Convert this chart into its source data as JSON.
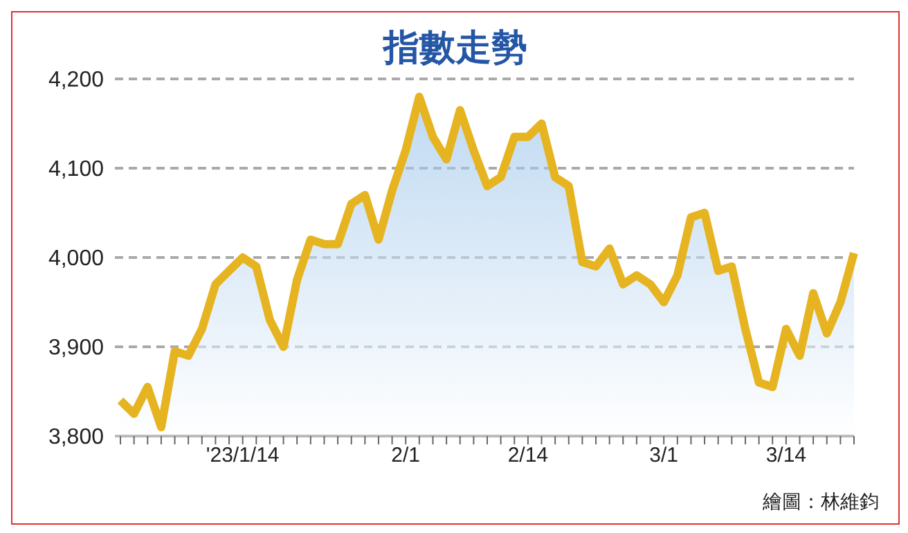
{
  "chart_data": {
    "type": "area",
    "title": "指數走勢",
    "categories": [
      null,
      null,
      null,
      null,
      null,
      null,
      null,
      null,
      null,
      "'23/1/14",
      null,
      null,
      null,
      null,
      null,
      null,
      null,
      null,
      null,
      null,
      null,
      "2/1",
      null,
      null,
      null,
      null,
      null,
      null,
      null,
      null,
      "2/14",
      null,
      null,
      null,
      null,
      null,
      null,
      null,
      null,
      null,
      "3/1",
      null,
      null,
      null,
      null,
      null,
      null,
      null,
      null,
      "3/14",
      null,
      null,
      null,
      null,
      null
    ],
    "series": [
      {
        "color": "#e6b420",
        "values": [
          3840,
          3825,
          3855,
          3810,
          3895,
          3890,
          3920,
          3970,
          3985,
          4000,
          3990,
          3930,
          3900,
          3975,
          4020,
          4015,
          4015,
          4060,
          4070,
          4020,
          4075,
          4120,
          4180,
          4135,
          4110,
          4165,
          4120,
          4080,
          4090,
          4135,
          4135,
          4150,
          4090,
          4080,
          3995,
          3990,
          4010,
          3970,
          3980,
          3970,
          3950,
          3980,
          4045,
          4050,
          3985,
          3990,
          3920,
          3860,
          3855,
          3920,
          3890,
          3960,
          3915,
          3950,
          4005
        ]
      }
    ],
    "ylim": [
      3800,
      4200
    ],
    "yticks": [
      {
        "value": 3800,
        "label": "3,800"
      },
      {
        "value": 3900,
        "label": "3,900"
      },
      {
        "value": 4000,
        "label": "4,000"
      },
      {
        "value": 4100,
        "label": "4,100"
      },
      {
        "value": 4200,
        "label": "4,200"
      }
    ],
    "grid": "y",
    "annotations": [
      "繪圖：林維鈞"
    ]
  }
}
